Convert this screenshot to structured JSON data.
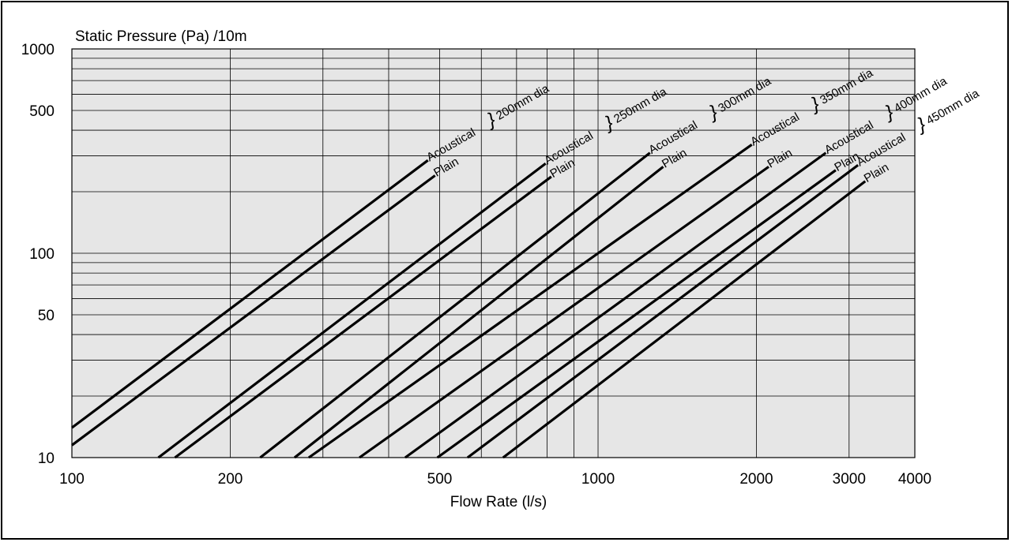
{
  "chart_data": {
    "type": "line",
    "title": "",
    "ylabel": "Static Pressure (Pa) /10m",
    "xlabel": "Flow Rate (l/s)",
    "x_scale": "log",
    "y_scale": "log",
    "xlim": [
      100,
      4000
    ],
    "ylim": [
      10,
      1000
    ],
    "grid": true,
    "x_ticks": [
      100,
      200,
      500,
      1000,
      2000,
      3000,
      4000
    ],
    "x_tick_labels": [
      "100",
      "200",
      "500",
      "1000",
      "2000",
      "3000",
      "4000"
    ],
    "y_ticks": [
      10,
      50,
      100,
      500,
      1000
    ],
    "y_tick_labels": [
      "10",
      "50",
      "100",
      "500",
      "1000"
    ],
    "x_gridlines": [
      200,
      300,
      400,
      500,
      600,
      700,
      800,
      900,
      1000,
      2000,
      3000
    ],
    "y_gridlines": [
      20,
      30,
      40,
      50,
      60,
      70,
      80,
      90,
      100,
      200,
      300,
      400,
      500,
      600,
      700,
      800,
      900
    ],
    "groups": [
      {
        "name": "200mm dia",
        "series": [
          {
            "name": "Acoustical",
            "x": [
              100,
              475
            ],
            "y": [
              14,
              285
            ]
          },
          {
            "name": "Plain",
            "x": [
              100,
              490
            ],
            "y": [
              11.5,
              240
            ]
          }
        ]
      },
      {
        "name": "250mm dia",
        "series": [
          {
            "name": "Acoustical",
            "x": [
              146,
              795
            ],
            "y": [
              10,
              275
            ]
          },
          {
            "name": "Plain",
            "x": [
              157,
              815
            ],
            "y": [
              10,
              237
            ]
          }
        ]
      },
      {
        "name": "300mm dia",
        "series": [
          {
            "name": "Acoustical",
            "x": [
              228,
              1255
            ],
            "y": [
              10,
              310
            ]
          },
          {
            "name": "Plain",
            "x": [
              265,
              1330
            ],
            "y": [
              10,
              265
            ]
          }
        ]
      },
      {
        "name": "350mm dia",
        "series": [
          {
            "name": "Acoustical",
            "x": [
              282,
              1960
            ],
            "y": [
              10,
              340
            ]
          },
          {
            "name": "Plain",
            "x": [
              352,
              2110
            ],
            "y": [
              10,
              265
            ]
          }
        ]
      },
      {
        "name": "400mm dia",
        "series": [
          {
            "name": "Acoustical",
            "x": [
              430,
              2710
            ],
            "y": [
              10,
              310
            ]
          },
          {
            "name": "Plain",
            "x": [
              495,
              2830
            ],
            "y": [
              10,
              255
            ]
          }
        ]
      },
      {
        "name": "450mm dia",
        "series": [
          {
            "name": "Acoustical",
            "x": [
              565,
              3120
            ],
            "y": [
              10,
              270
            ]
          },
          {
            "name": "Plain",
            "x": [
              660,
              3220
            ],
            "y": [
              10,
              225
            ]
          }
        ]
      }
    ]
  }
}
